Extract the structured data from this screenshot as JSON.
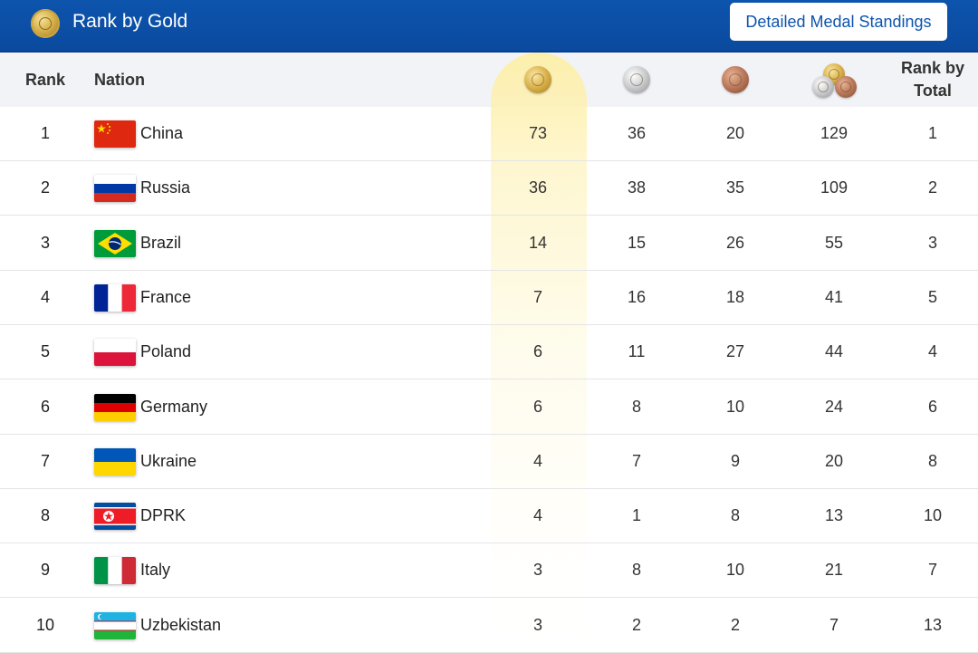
{
  "header": {
    "title": "Rank by Gold",
    "button_label": "Detailed Medal Standings",
    "logo_icon": "gold-medal-icon"
  },
  "columns": {
    "rank": "Rank",
    "nation": "Nation",
    "gold_icon": "gold-medal-icon",
    "silver_icon": "silver-medal-icon",
    "bronze_icon": "bronze-medal-icon",
    "total_icon": "total-medals-icon",
    "rank_by_total_line1": "Rank by",
    "rank_by_total_line2": "Total"
  },
  "colors": {
    "brand_blue": "#0d54ad",
    "gold_highlight": "#fdefa8"
  },
  "rows": [
    {
      "rank": "1",
      "nation": "China",
      "flag": "china-flag",
      "gold": "73",
      "silver": "36",
      "bronze": "20",
      "total": "129",
      "rank_by_total": "1"
    },
    {
      "rank": "2",
      "nation": "Russia",
      "flag": "russia-flag",
      "gold": "36",
      "silver": "38",
      "bronze": "35",
      "total": "109",
      "rank_by_total": "2"
    },
    {
      "rank": "3",
      "nation": "Brazil",
      "flag": "brazil-flag",
      "gold": "14",
      "silver": "15",
      "bronze": "26",
      "total": "55",
      "rank_by_total": "3"
    },
    {
      "rank": "4",
      "nation": "France",
      "flag": "france-flag",
      "gold": "7",
      "silver": "16",
      "bronze": "18",
      "total": "41",
      "rank_by_total": "5"
    },
    {
      "rank": "5",
      "nation": "Poland",
      "flag": "poland-flag",
      "gold": "6",
      "silver": "11",
      "bronze": "27",
      "total": "44",
      "rank_by_total": "4"
    },
    {
      "rank": "6",
      "nation": "Germany",
      "flag": "germany-flag",
      "gold": "6",
      "silver": "8",
      "bronze": "10",
      "total": "24",
      "rank_by_total": "6"
    },
    {
      "rank": "7",
      "nation": "Ukraine",
      "flag": "ukraine-flag",
      "gold": "4",
      "silver": "7",
      "bronze": "9",
      "total": "20",
      "rank_by_total": "8"
    },
    {
      "rank": "8",
      "nation": "DPRK",
      "flag": "dprk-flag",
      "gold": "4",
      "silver": "1",
      "bronze": "8",
      "total": "13",
      "rank_by_total": "10"
    },
    {
      "rank": "9",
      "nation": "Italy",
      "flag": "italy-flag",
      "gold": "3",
      "silver": "8",
      "bronze": "10",
      "total": "21",
      "rank_by_total": "7"
    },
    {
      "rank": "10",
      "nation": "Uzbekistan",
      "flag": "uzbekistan-flag",
      "gold": "3",
      "silver": "2",
      "bronze": "2",
      "total": "7",
      "rank_by_total": "13"
    }
  ]
}
